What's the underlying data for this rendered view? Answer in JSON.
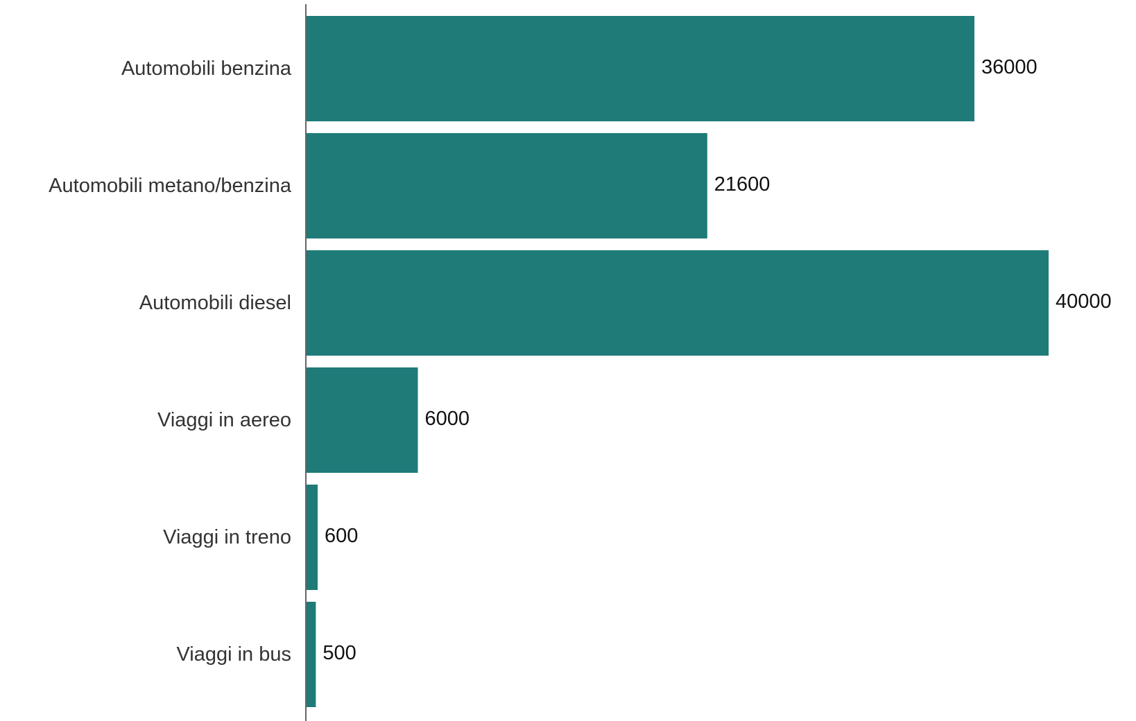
{
  "chart_data": {
    "type": "bar",
    "orientation": "horizontal",
    "categories": [
      "Automobili benzina",
      "Automobili metano/benzina",
      "Automobili diesel",
      "Viaggi in aereo",
      "Viaggi in treno",
      "Viaggi in bus"
    ],
    "values": [
      36000,
      21600,
      40000,
      6000,
      600,
      500
    ],
    "value_labels": [
      "36000",
      "21600",
      "40000",
      "6000",
      "600",
      "500"
    ],
    "xlim": [
      0,
      40000
    ],
    "grid": false,
    "legend": "none",
    "colors": {
      "bar": "#1e7b78",
      "axis": "#666666"
    }
  }
}
